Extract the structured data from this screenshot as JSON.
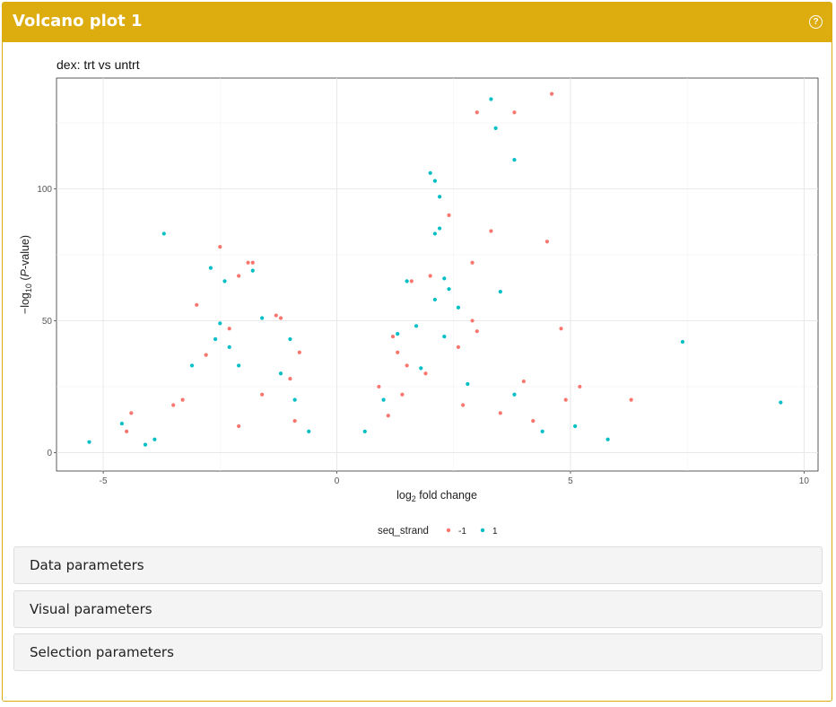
{
  "panel": {
    "title": "Volcano plot 1",
    "help_icon": "question-circle-icon"
  },
  "accordions": [
    {
      "label": "Data parameters"
    },
    {
      "label": "Visual parameters"
    },
    {
      "label": "Selection parameters"
    }
  ],
  "colors": {
    "header": "#ddad0f",
    "series_neg": "#F8766D",
    "series_pos": "#00BFC4"
  },
  "chart_data": {
    "type": "scatter",
    "title": "dex: trt vs untrt",
    "xlabel": "log2 fold change",
    "ylabel": "-log10 (P-value)",
    "xlim": [
      -6,
      10.3
    ],
    "ylim": [
      -7,
      142
    ],
    "xticks": [
      -5,
      0,
      5,
      10
    ],
    "yticks": [
      0,
      50,
      100
    ],
    "grid": true,
    "legend": {
      "title": "seq_strand",
      "placement": "bottom",
      "entries": [
        "-1",
        "1"
      ]
    },
    "series": [
      {
        "name": "-1",
        "points": [
          [
            4.6,
            136
          ],
          [
            3.0,
            129
          ],
          [
            3.8,
            129
          ],
          [
            -2.5,
            78
          ],
          [
            -1.9,
            72
          ],
          [
            -1.8,
            72
          ],
          [
            4.5,
            80
          ],
          [
            3.3,
            84
          ],
          [
            2.4,
            90
          ],
          [
            2.9,
            72
          ],
          [
            2.0,
            67
          ],
          [
            1.6,
            65
          ],
          [
            -2.1,
            67
          ],
          [
            -3.0,
            56
          ],
          [
            -1.3,
            52
          ],
          [
            -1.2,
            51
          ],
          [
            2.9,
            50
          ],
          [
            4.8,
            47
          ],
          [
            -2.3,
            47
          ],
          [
            3.0,
            46
          ],
          [
            -0.8,
            38
          ],
          [
            1.2,
            44
          ],
          [
            1.3,
            38
          ],
          [
            5.2,
            25
          ],
          [
            6.3,
            20
          ],
          [
            4.9,
            20
          ],
          [
            4.0,
            27
          ],
          [
            -4.4,
            15
          ],
          [
            -4.5,
            8
          ],
          [
            -2.1,
            10
          ],
          [
            -0.9,
            12
          ],
          [
            1.1,
            14
          ],
          [
            1.4,
            22
          ],
          [
            2.7,
            18
          ],
          [
            3.5,
            15
          ],
          [
            4.2,
            12
          ],
          [
            -3.3,
            20
          ],
          [
            -1.6,
            22
          ],
          [
            0.9,
            25
          ],
          [
            1.9,
            30
          ],
          [
            2.6,
            40
          ],
          [
            -2.8,
            37
          ],
          [
            -3.5,
            18
          ],
          [
            -1.0,
            28
          ],
          [
            1.5,
            33
          ]
        ]
      },
      {
        "name": "1",
        "points": [
          [
            3.3,
            134
          ],
          [
            3.4,
            123
          ],
          [
            3.8,
            111
          ],
          [
            2.0,
            106
          ],
          [
            2.1,
            103
          ],
          [
            2.2,
            97
          ],
          [
            2.2,
            85
          ],
          [
            2.1,
            83
          ],
          [
            -3.7,
            83
          ],
          [
            -2.7,
            70
          ],
          [
            -2.4,
            65
          ],
          [
            -1.8,
            69
          ],
          [
            3.5,
            61
          ],
          [
            2.3,
            66
          ],
          [
            1.5,
            65
          ],
          [
            -1.6,
            51
          ],
          [
            -2.5,
            49
          ],
          [
            2.4,
            62
          ],
          [
            7.4,
            42
          ],
          [
            9.5,
            19
          ],
          [
            5.8,
            5
          ],
          [
            5.1,
            10
          ],
          [
            -5.3,
            4
          ],
          [
            -4.6,
            11
          ],
          [
            -2.6,
            43
          ],
          [
            -1.0,
            43
          ],
          [
            -3.1,
            33
          ],
          [
            -2.3,
            40
          ],
          [
            1.3,
            45
          ],
          [
            2.1,
            58
          ],
          [
            2.6,
            55
          ],
          [
            -1.2,
            30
          ],
          [
            1.8,
            32
          ],
          [
            -0.9,
            20
          ],
          [
            1.0,
            20
          ],
          [
            2.8,
            26
          ],
          [
            3.8,
            22
          ],
          [
            4.4,
            8
          ],
          [
            -4.1,
            3
          ],
          [
            -3.9,
            5
          ],
          [
            0.6,
            8
          ],
          [
            -0.6,
            8
          ],
          [
            2.3,
            44
          ],
          [
            1.7,
            48
          ],
          [
            -2.1,
            33
          ]
        ]
      }
    ]
  }
}
